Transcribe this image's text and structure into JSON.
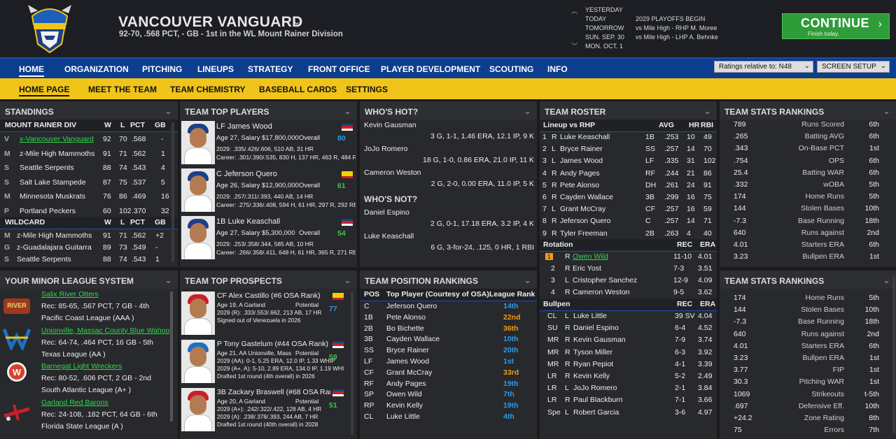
{
  "header": {
    "team_name": "VANCOUVER VANGUARD",
    "record": "92-70, .568 PCT, - GB - 1st in the WL Mount Rainer Division",
    "schedule": [
      {
        "day": "YESTERDAY",
        "event": ""
      },
      {
        "day": "TODAY",
        "event": "2029 PLAYOFFS BEGIN"
      },
      {
        "day": "TOMORROW",
        "event": "vs Mile High - RHP M. Moree"
      },
      {
        "day": "SUN. SEP. 30",
        "event": "vs Mile High - LHP A. Behnke"
      },
      {
        "day": "MON. OCT. 1",
        "event": ""
      }
    ],
    "continue_label": "CONTINUE",
    "continue_sub": "Finish today."
  },
  "nav": {
    "main": [
      "HOME",
      "ORGANIZATION",
      "PITCHING",
      "LINEUPS",
      "STRATEGY",
      "FRONT OFFICE",
      "PLAYER DEVELOPMENT",
      "SCOUTING",
      "INFO"
    ],
    "ratings_dropdown": "Ratings relative to: N48",
    "screen_setup": "SCREEN SETUP",
    "sub": [
      "HOME PAGE",
      "MEET THE TEAM",
      "TEAM CHEMISTRY",
      "BASEBALL CARDS",
      "SETTINGS"
    ]
  },
  "standings": {
    "title": "STANDINGS",
    "div_header": [
      "MOUNT RAINER DIV",
      "W",
      "L",
      "PCT",
      "GB"
    ],
    "div_rows": [
      [
        "x-Vancouver Vanguard",
        "92",
        "70",
        ".568",
        "-"
      ],
      [
        "z-Mile High Mammoths",
        "91",
        "71",
        ".562",
        "1"
      ],
      [
        "Seattle Serpents",
        "88",
        "74",
        ".543",
        "4"
      ],
      [
        "Salt Lake Stampede",
        "87",
        "75",
        ".537",
        "5"
      ],
      [
        "Minnesota Muskrats",
        "76",
        "86",
        ".469",
        "16"
      ],
      [
        "Portland Peckers",
        "60",
        "102",
        ".370",
        "32"
      ]
    ],
    "wc_header": [
      "WILDCARD",
      "W",
      "L",
      "PCT",
      "GB"
    ],
    "wc_rows": [
      [
        "z-Mile High Mammoths",
        "91",
        "71",
        ".562",
        "+2"
      ],
      [
        "z-Guadalajara Guitarra",
        "89",
        "73",
        ".549",
        "-"
      ],
      [
        "Seattle Serpents",
        "88",
        "74",
        ".543",
        "1"
      ]
    ]
  },
  "top_players": {
    "title": "TEAM TOP PLAYERS",
    "players": [
      {
        "name": "LF James Wood",
        "salary": "Age 27, Salary $17,800,000",
        "overall_label": "Overall",
        "overall": "80",
        "l1": "2029: .335/.426/.606, 510 AB, 31 HR",
        "l2": "Career: .301/.390/.535, 830 H, 137 HR, 463 R, 484 R"
      },
      {
        "name": "C Jeferson Quero",
        "salary": "Age 26, Salary $12,900,000",
        "overall_label": "Overall",
        "overall": "61",
        "l1": "2029: .257/.311/.393, 440 AB, 14 HR",
        "l2": "Career: .275/.336/.408, 594 H, 61 HR, 297 R, 292 RE"
      },
      {
        "name": "1B Luke Keaschall",
        "salary": "Age 27, Salary $5,300,000",
        "overall_label": "Overall",
        "overall": "54",
        "l1": "2029: .253/.358/.344, 585 AB, 10 HR",
        "l2": "Career: .266/.358/.411, 648 H, 61 HR, 365 R, 271 RE"
      }
    ]
  },
  "whos_hot": {
    "title": "WHO'S HOT?",
    "rows": [
      {
        "name": "Kevin Gausman",
        "line": "3 G, 1-1, 1.46 ERA, 12.1 IP, 9 K"
      },
      {
        "name": "JoJo Romero",
        "line": "18 G, 1-0, 0.86 ERA, 21.0 IP, 11 K"
      },
      {
        "name": "Cameron Weston",
        "line": "2 G, 2-0, 0.00 ERA, 11.0 IP, 5 K"
      }
    ],
    "not_title": "WHO'S NOT?",
    "not_rows": [
      {
        "name": "Daniel Espino",
        "line": "2 G, 0-1, 17.18 ERA, 3.2 IP, 4 K"
      },
      {
        "name": "Luke Keaschall",
        "line": "6 G, 3-for-24, .125, 0 HR, 1 RBI"
      }
    ]
  },
  "roster": {
    "title": "TEAM ROSTER",
    "lineup_header": [
      "Lineup vs RHP",
      "AVG",
      "HR",
      "RBI"
    ],
    "lineup": [
      [
        "1",
        "R",
        "Luke Keaschall",
        "1B",
        ".253",
        "10",
        "49"
      ],
      [
        "2",
        "L",
        "Bryce Rainer",
        "SS",
        ".257",
        "14",
        "70"
      ],
      [
        "3",
        "L",
        "James Wood",
        "LF",
        ".335",
        "31",
        "102"
      ],
      [
        "4",
        "R",
        "Andy Pages",
        "RF",
        ".244",
        "21",
        "86"
      ],
      [
        "5",
        "R",
        "Pete Alonso",
        "DH",
        ".261",
        "24",
        "91"
      ],
      [
        "6",
        "R",
        "Cayden Wallace",
        "3B",
        ".299",
        "16",
        "75"
      ],
      [
        "7",
        "L",
        "Grant McCray",
        "CF",
        ".257",
        "16",
        "59"
      ],
      [
        "8",
        "R",
        "Jeferson Quero",
        "C",
        ".257",
        "14",
        "71"
      ],
      [
        "9",
        "R",
        "Tyler Freeman",
        "2B",
        ".263",
        "4",
        "40"
      ]
    ],
    "rot_header": [
      "Rotation",
      "REC",
      "ERA"
    ],
    "rotation": [
      [
        "1",
        "R",
        "Owen Wild",
        "11-10",
        "4.01"
      ],
      [
        "2",
        "R",
        "Eric Yost",
        "7-3",
        "3.51"
      ],
      [
        "3",
        "L",
        "Cristopher Sanchez",
        "12-9",
        "4.09"
      ],
      [
        "4",
        "R",
        "Cameron Weston",
        "9-5",
        "3.62"
      ]
    ],
    "bp_header": [
      "Bullpen",
      "REC",
      "ERA"
    ],
    "bullpen": [
      [
        "CL",
        "L",
        "Luke Little",
        "39 SV",
        "4.04"
      ],
      [
        "SU",
        "R",
        "Daniel Espino",
        "6-4",
        "4.52"
      ],
      [
        "MR",
        "R",
        "Kevin Gausman",
        "7-9",
        "3.74"
      ],
      [
        "MR",
        "R",
        "Tyson Miller",
        "6-3",
        "3.92"
      ],
      [
        "MR",
        "R",
        "Ryan Pepiot",
        "4-1",
        "3.39"
      ],
      [
        "LR",
        "R",
        "Kevin Kelly",
        "5-2",
        "2.49"
      ],
      [
        "LR",
        "L",
        "JoJo Romero",
        "2-1",
        "3.84"
      ],
      [
        "LR",
        "R",
        "Paul Blackburn",
        "7-1",
        "3.66"
      ],
      [
        "Spe",
        "L",
        "Robert Garcia",
        "3-6",
        "4.97"
      ]
    ]
  },
  "stats1": {
    "title": "TEAM STATS RANKINGS",
    "rows": [
      [
        "789",
        "Runs Scored",
        "6th"
      ],
      [
        ".265",
        "Batting AVG",
        "6th"
      ],
      [
        ".343",
        "On-Base PCT",
        "1st"
      ],
      [
        ".754",
        "OPS",
        "6th"
      ],
      [
        "25.4",
        "Batting WAR",
        "6th"
      ],
      [
        ".332",
        "wOBA",
        "5th"
      ],
      [
        "174",
        "Home Runs",
        "5th"
      ],
      [
        "144",
        "Stolen Bases",
        "10th"
      ],
      [
        "-7.3",
        "Base Running",
        "18th"
      ],
      [
        "640",
        "Runs against",
        "2nd"
      ],
      [
        "4.01",
        "Starters ERA",
        "6th"
      ],
      [
        "3.23",
        "Bullpen ERA",
        "1st"
      ]
    ]
  },
  "stats2": {
    "title": "TEAM STATS RANKINGS",
    "rows": [
      [
        "174",
        "Home Runs",
        "5th"
      ],
      [
        "144",
        "Stolen Bases",
        "10th"
      ],
      [
        "-7.3",
        "Base Running",
        "18th"
      ],
      [
        "640",
        "Runs against",
        "2nd"
      ],
      [
        "4.01",
        "Starters ERA",
        "6th"
      ],
      [
        "3.23",
        "Bullpen ERA",
        "1st"
      ],
      [
        "3.77",
        "FIP",
        "1st"
      ],
      [
        "30.3",
        "Pitching WAR",
        "1st"
      ],
      [
        "1069",
        "Strikeouts",
        "t-5th"
      ],
      [
        ".697",
        "Defensive Eff.",
        "10th"
      ],
      [
        "+24.2",
        "Zone Rating",
        "8th"
      ],
      [
        "75",
        "Errors",
        "7th"
      ]
    ]
  },
  "minors": {
    "title": "YOUR MINOR LEAGUE SYSTEM",
    "teams": [
      {
        "name": "Salix River Otters",
        "rec": "Rec: 85-65, .567 PCT, 7 GB - 4th",
        "league": "Pacific Coast League (AAA )"
      },
      {
        "name": "Unionville, Massac County Blue Wahoo",
        "rec": "Rec: 64-74, .464 PCT, 16 GB - 5th",
        "league": "Texas League (AA )"
      },
      {
        "name": "Barnegat Light Wreckers",
        "rec": "Rec: 80-52, .606 PCT, 2 GB - 2nd",
        "league": "South Atlantic League (A+ )"
      },
      {
        "name": "Garland Red Barons",
        "rec": "Rec: 24-108, .182 PCT, 64 GB - 6th",
        "league": "Florida State League (A )"
      }
    ]
  },
  "prospects": {
    "title": "TEAM TOP PROSPECTS",
    "players": [
      {
        "name": "CF Alex Castillo (#6 OSA Rank)",
        "age": "Age 19, A Garland",
        "pot_label": "Potential",
        "pot": "77",
        "l1": "2029 (R): .333/.553/.662, 213 AB, 17 HR",
        "l2": "Signed out of Venezuela in 2026"
      },
      {
        "name": "P Tony Gastelum (#44 OSA Rank)",
        "age": "Age 21, AA Unionville, Mass",
        "pot_label": "Potential",
        "pot": "59",
        "l1": "2029 (AA): 0-1, 5.25 ERA, 12.0 IP, 1.33 WHIP",
        "l2": "2029 (A+, A): 5-10, 2.89 ERA, 134.0 IP, 1.19 WHI",
        "l3": "Drafted 1st round (4th overall) in 2026"
      },
      {
        "name": "3B Zackary Braswell (#68 OSA Rank)",
        "age": "Age 20, A Garland",
        "pot_label": "Potential",
        "pot": "51",
        "l1": "2029 (A+): .242/.322/.422, 128 AB, 4 HR",
        "l2": "2029 (A): .238/.378/.393, 244 AB, 7 HR",
        "l3": "Drafted 1st round (40th overall) in 2028"
      }
    ]
  },
  "positions": {
    "title": "TEAM POSITION RANKINGS",
    "header": [
      "POS",
      "Top Player (Courtesy of OSA)",
      "League Rank"
    ],
    "rows": [
      [
        "C",
        "Jeferson Quero",
        "14th"
      ],
      [
        "1B",
        "Pete Alonso",
        "22nd"
      ],
      [
        "2B",
        "Bo Bichette",
        "36th"
      ],
      [
        "3B",
        "Cayden Wallace",
        "10th"
      ],
      [
        "SS",
        "Bryce Rainer",
        "20th"
      ],
      [
        "LF",
        "James Wood",
        "1st"
      ],
      [
        "CF",
        "Grant McCray",
        "33rd"
      ],
      [
        "RF",
        "Andy Pages",
        "19th"
      ],
      [
        "SP",
        "Owen Wild",
        "7th"
      ],
      [
        "RP",
        "Kevin Kelly",
        "19th"
      ],
      [
        "CL",
        "Luke Little",
        "4th"
      ]
    ]
  },
  "colors": {
    "accent_green": "#2f9c3a",
    "nav_blue": "#0c3d8f",
    "nav_yellow": "#f0c419",
    "rank_good": "#2a9ded",
    "rank_bad": "#f39c12"
  }
}
